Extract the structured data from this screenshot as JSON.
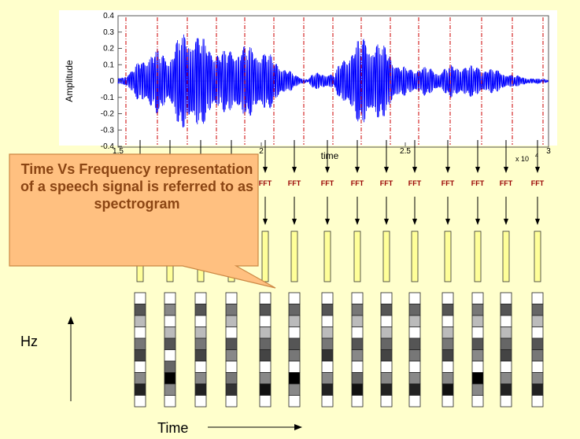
{
  "waveform": {
    "y_axis_label": "Amplitude",
    "x_axis_label": "time",
    "x_multiplier": "x 10",
    "x_multiplier_exp": "4",
    "y_ticks": [
      "0.4",
      "0.3",
      "0.2",
      "0.1",
      "0",
      "-0.1",
      "-0.2",
      "-0.3",
      "-0.4"
    ],
    "x_ticks": [
      "1.5",
      "2",
      "2.5",
      "3"
    ],
    "line_color": "#0000ff",
    "frame_marker_color": "#cc0000"
  },
  "fft_label": "FFT",
  "fft_label_color": "#990000",
  "columns": [
    {
      "shades": [
        "#ffffff",
        "#555555",
        "#bbbbbb",
        "#ffffff",
        "#777777",
        "#444444",
        "#ffffff",
        "#888888",
        "#222222",
        "#ffffff"
      ]
    },
    {
      "shades": [
        "#ffffff",
        "#888888",
        "#ffffff",
        "#bbbbbb",
        "#555555",
        "#ffffff",
        "#666666",
        "#000000",
        "#888888",
        "#ffffff"
      ]
    },
    {
      "shades": [
        "#ffffff",
        "#555555",
        "#ffffff",
        "#bbbbbb",
        "#777777",
        "#444444",
        "#ffffff",
        "#888888",
        "#222222",
        "#ffffff"
      ]
    },
    {
      "shades": [
        "#ffffff",
        "#777777",
        "#bbbbbb",
        "#ffffff",
        "#555555",
        "#888888",
        "#ffffff",
        "#777777",
        "#333333",
        "#ffffff"
      ]
    },
    {
      "shades": [
        "#ffffff",
        "#555555",
        "#ffffff",
        "#bbbbbb",
        "#666666",
        "#444444",
        "#ffffff",
        "#888888",
        "#111111",
        "#ffffff"
      ]
    },
    {
      "shades": [
        "#ffffff",
        "#666666",
        "#bbbbbb",
        "#ffffff",
        "#555555",
        "#777777",
        "#ffffff",
        "#000000",
        "#888888",
        "#ffffff"
      ]
    },
    {
      "shades": [
        "#ffffff",
        "#555555",
        "#ffffff",
        "#bbbbbb",
        "#777777",
        "#333333",
        "#ffffff",
        "#888888",
        "#222222",
        "#ffffff"
      ]
    },
    {
      "shades": [
        "#ffffff",
        "#777777",
        "#bbbbbb",
        "#ffffff",
        "#555555",
        "#888888",
        "#ffffff",
        "#666666",
        "#111111",
        "#ffffff"
      ]
    },
    {
      "shades": [
        "#ffffff",
        "#555555",
        "#ffffff",
        "#bbbbbb",
        "#666666",
        "#444444",
        "#ffffff",
        "#888888",
        "#222222",
        "#ffffff"
      ]
    },
    {
      "shades": [
        "#ffffff",
        "#666666",
        "#bbbbbb",
        "#ffffff",
        "#555555",
        "#777777",
        "#ffffff",
        "#888888",
        "#222222",
        "#ffffff"
      ]
    },
    {
      "shades": [
        "#ffffff",
        "#555555",
        "#ffffff",
        "#bbbbbb",
        "#777777",
        "#444444",
        "#ffffff",
        "#888888",
        "#111111",
        "#ffffff"
      ]
    },
    {
      "shades": [
        "#ffffff",
        "#777777",
        "#bbbbbb",
        "#ffffff",
        "#555555",
        "#888888",
        "#ffffff",
        "#000000",
        "#888888",
        "#ffffff"
      ]
    },
    {
      "shades": [
        "#ffffff",
        "#555555",
        "#ffffff",
        "#bbbbbb",
        "#666666",
        "#444444",
        "#ffffff",
        "#888888",
        "#222222",
        "#ffffff"
      ]
    },
    {
      "shades": [
        "#ffffff",
        "#666666",
        "#bbbbbb",
        "#ffffff",
        "#555555",
        "#777777",
        "#ffffff",
        "#888888",
        "#222222",
        "#ffffff"
      ]
    }
  ],
  "callout": {
    "text": "Time Vs Frequency representation of a speech signal is referred to as spectrogram",
    "fill": "#ffc080",
    "border": "#cc8844",
    "text_color": "#8b4513"
  },
  "y_axis_title": "Hz",
  "x_axis_title": "Time",
  "window_fill": "#ffff99"
}
